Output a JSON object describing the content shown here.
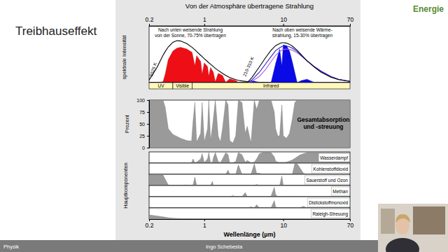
{
  "slide": {
    "title": "Treibhauseffekt",
    "section": "Energie",
    "footer_left": "Physik",
    "footer_center": "Ingo Schebesta"
  },
  "chart_data": [
    {
      "type": "area",
      "title": "Von der Atmosphäre übertragene Strahlung",
      "ylabel": "spektrale Intensität",
      "log": "x",
      "tick_labels": "x",
      "xlim": [
        0.2,
        70
      ],
      "xticks": [
        0.2,
        1,
        10,
        70
      ],
      "ylim": [
        0,
        135
      ],
      "x": [
        0.2,
        0.25,
        0.3,
        0.32,
        0.35,
        0.4,
        0.45,
        0.5,
        0.6,
        0.7,
        0.76,
        0.8,
        0.9,
        0.94,
        1.0,
        1.1,
        1.14,
        1.2,
        1.3,
        1.38,
        1.5,
        1.7,
        1.87,
        2.1,
        2.5,
        2.7,
        3,
        3.5,
        4,
        5,
        6,
        7,
        8,
        9,
        9.6,
        10,
        11,
        12,
        13,
        15,
        17,
        20,
        25,
        30,
        40,
        50,
        70
      ],
      "series": [
        {
          "type": "area",
          "color": "#ee0f16",
          "values": [
            0,
            0,
            2,
            20,
            55,
            75,
            82,
            84,
            80,
            72,
            40,
            64,
            50,
            20,
            47,
            38,
            15,
            36,
            25,
            2,
            22,
            17,
            1,
            9,
            5,
            0.5,
            0.5,
            1.5,
            1,
            0,
            0,
            0,
            0,
            0,
            0,
            0,
            0,
            0,
            0,
            0,
            0,
            0,
            0,
            0,
            0,
            0,
            0
          ]
        },
        {
          "type": "line",
          "color": "#000000",
          "values": [
            6,
            35,
            65,
            74,
            85,
            96,
            100,
            99,
            93,
            84,
            78,
            74,
            65,
            62,
            57,
            50,
            47,
            44,
            38,
            34,
            29,
            22,
            17,
            12,
            7,
            5.5,
            4,
            2.5,
            1.5,
            0.6,
            0.3,
            0,
            0,
            0,
            0,
            0,
            0,
            0,
            0,
            0,
            0,
            0,
            0,
            0,
            0,
            0,
            0
          ]
        },
        {
          "type": "area",
          "color": "#0a0ae6",
          "values": [
            0,
            0,
            0,
            0,
            0,
            0,
            0,
            0,
            0,
            0,
            0,
            0,
            0,
            0,
            0,
            0,
            0,
            0,
            0,
            0,
            0,
            0,
            0,
            0,
            0,
            0,
            0,
            0,
            5,
            0,
            0,
            0,
            45,
            80,
            40,
            90,
            88,
            75,
            50,
            0,
            5,
            8,
            0,
            0,
            0,
            0,
            0
          ]
        },
        {
          "type": "line",
          "color": "#b05ce6",
          "values": [
            0,
            0,
            0,
            0,
            0,
            0,
            0,
            0,
            0,
            0,
            0,
            0,
            0,
            0,
            0,
            0,
            0,
            0,
            0,
            0,
            0,
            0,
            0,
            0,
            0,
            0,
            0,
            0,
            3,
            15,
            32,
            50,
            65,
            74,
            77,
            79,
            80,
            79,
            77,
            71,
            63,
            52,
            38,
            28,
            15,
            8,
            3
          ]
        },
        {
          "type": "line",
          "color": "#2020d0",
          "values": [
            0,
            0,
            0,
            0,
            0,
            0,
            0,
            0,
            0,
            0,
            0,
            0,
            0,
            0,
            0,
            0,
            0,
            0,
            0,
            0,
            0,
            0,
            0,
            0,
            0,
            0,
            0,
            0,
            6,
            25,
            45,
            62,
            76,
            83,
            86,
            87,
            87,
            85,
            82,
            74,
            64,
            52,
            37,
            27,
            14,
            8,
            3
          ]
        },
        {
          "type": "line",
          "color": "#000000",
          "values": [
            0,
            0,
            0,
            0,
            0,
            0,
            0,
            0,
            0,
            0,
            0,
            0,
            0,
            0,
            0,
            0,
            0,
            0,
            0,
            0,
            0,
            0,
            0,
            0,
            0,
            0,
            0,
            0,
            12,
            38,
            60,
            77,
            88,
            93,
            95,
            95,
            94,
            91,
            87,
            77,
            66,
            52,
            36,
            25,
            13,
            7,
            3
          ]
        }
      ],
      "bands": [
        {
          "label": "UV",
          "from": 0.2,
          "to": 0.4
        },
        {
          "label": "Visible",
          "from": 0.4,
          "to": 0.7
        },
        {
          "label": "Infrared",
          "from": 0.7,
          "to": 70
        }
      ],
      "annotations": [
        [
          "Nach unten weisende Strahlung",
          "von der Sonne, 70-75% übertragen"
        ],
        [
          "Nach oben weisende Wärme-",
          "strahlung, 15-30% übertragen"
        ],
        [
          "5525 K"
        ],
        [
          "210-310 K"
        ]
      ]
    },
    {
      "type": "area",
      "ylabel": "Prozent",
      "log": "x",
      "tick_labels": "y",
      "xlim": [
        0.2,
        70
      ],
      "ylim": [
        0,
        100
      ],
      "yticks": [
        0,
        25,
        50,
        75,
        100
      ],
      "x": [
        0.2,
        0.25,
        0.3,
        0.32,
        0.35,
        0.4,
        0.5,
        0.6,
        0.69,
        0.72,
        0.76,
        0.8,
        0.9,
        0.94,
        1.0,
        1.1,
        1.14,
        1.2,
        1.27,
        1.3,
        1.38,
        1.5,
        1.6,
        1.7,
        1.87,
        2.0,
        2.1,
        2.3,
        2.5,
        2.7,
        3.0,
        3.3,
        3.5,
        3.9,
        4.3,
        4.6,
        5.0,
        5.5,
        6.3,
        7.0,
        7.7,
        8.0,
        8.5,
        9.0,
        9.6,
        10,
        11,
        12,
        13,
        14,
        15,
        16,
        18,
        20,
        25,
        30,
        40,
        50,
        70
      ],
      "series": [
        {
          "color": "#9a9a9a",
          "values": [
            100,
            100,
            100,
            85,
            40,
            28,
            20,
            15,
            14,
            55,
            95,
            12,
            30,
            95,
            12,
            40,
            100,
            15,
            45,
            60,
            100,
            25,
            12,
            40,
            100,
            90,
            15,
            10,
            25,
            100,
            95,
            30,
            45,
            10,
            100,
            80,
            100,
            100,
            100,
            100,
            75,
            40,
            25,
            25,
            90,
            25,
            20,
            30,
            60,
            95,
            100,
            100,
            100,
            100,
            100,
            100,
            100,
            100,
            100
          ]
        }
      ],
      "annotations": [
        [
          "Gesamtabsorption",
          "und -streuung"
        ]
      ]
    },
    {
      "type": "strips",
      "ylabel": "Hauptkomponenten",
      "xlabel": "Wellenlänge (µm)",
      "log": "x",
      "tick_labels": "x",
      "xlim": [
        0.2,
        70
      ],
      "xticks": [
        0.2,
        1,
        10,
        70
      ],
      "ylim": [
        0,
        100
      ],
      "x": [
        0.2,
        0.25,
        0.3,
        0.32,
        0.35,
        0.4,
        0.5,
        0.6,
        0.69,
        0.72,
        0.76,
        0.8,
        0.9,
        0.94,
        1.0,
        1.1,
        1.14,
        1.2,
        1.27,
        1.3,
        1.38,
        1.5,
        1.6,
        1.7,
        1.87,
        2.0,
        2.1,
        2.3,
        2.5,
        2.7,
        3.0,
        3.3,
        3.5,
        3.9,
        4.3,
        4.6,
        5.0,
        5.5,
        6.3,
        7.0,
        7.7,
        8.0,
        8.5,
        9.0,
        9.6,
        10,
        11,
        12,
        13,
        14,
        15,
        16,
        18,
        20,
        25,
        30,
        40,
        50,
        70
      ],
      "series": [
        {
          "name": "Wasserdampf",
          "color": "#9a9a9a",
          "values": [
            0,
            0,
            0,
            0,
            0,
            0,
            0,
            0,
            5,
            40,
            5,
            10,
            40,
            90,
            5,
            40,
            100,
            5,
            10,
            50,
            100,
            15,
            5,
            40,
            100,
            80,
            5,
            5,
            15,
            100,
            80,
            10,
            25,
            5,
            10,
            40,
            90,
            100,
            100,
            100,
            60,
            20,
            10,
            8,
            8,
            8,
            10,
            20,
            30,
            45,
            60,
            75,
            90,
            100,
            100,
            100,
            100,
            100,
            100
          ]
        },
        {
          "name": "Kohlenstoffdioxid",
          "color": "#9a9a9a",
          "values": [
            0,
            0,
            0,
            0,
            0,
            0,
            0,
            0,
            0,
            0,
            0,
            0,
            0,
            0,
            0,
            0,
            0,
            0,
            0,
            0,
            0,
            0,
            0,
            0,
            0,
            40,
            0,
            0,
            0,
            90,
            0,
            0,
            0,
            0,
            100,
            10,
            10,
            0,
            0,
            0,
            0,
            0,
            0,
            0,
            0,
            5,
            0,
            0,
            0,
            100,
            100,
            70,
            10,
            0,
            0,
            0,
            0,
            0,
            0
          ]
        },
        {
          "name": "Sauerstoff und Ozon",
          "color": "#9a9a9a",
          "values": [
            100,
            100,
            100,
            60,
            5,
            0,
            3,
            5,
            2,
            5,
            80,
            0,
            0,
            0,
            0,
            0,
            0,
            0,
            40,
            0,
            0,
            0,
            0,
            0,
            0,
            0,
            0,
            0,
            0,
            0,
            0,
            0,
            0,
            0,
            0,
            10,
            0,
            0,
            0,
            0,
            0,
            0,
            0,
            0,
            90,
            0,
            0,
            0,
            0,
            0,
            0,
            0,
            0,
            0,
            0,
            0,
            0,
            0,
            0
          ]
        },
        {
          "name": "Methan",
          "color": "#9a9a9a",
          "values": [
            0,
            0,
            0,
            0,
            0,
            0,
            0,
            0,
            0,
            0,
            0,
            0,
            0,
            0,
            0,
            0,
            0,
            0,
            0,
            0,
            0,
            0,
            0,
            0,
            0,
            0,
            0,
            10,
            0,
            0,
            0,
            40,
            0,
            0,
            0,
            0,
            0,
            0,
            0,
            5,
            90,
            20,
            0,
            0,
            0,
            0,
            0,
            0,
            0,
            0,
            0,
            0,
            0,
            0,
            0,
            0,
            0,
            0,
            0
          ]
        },
        {
          "name": "Distickstoffmonoxid",
          "color": "#9a9a9a",
          "values": [
            0,
            0,
            0,
            0,
            0,
            0,
            0,
            0,
            0,
            0,
            0,
            0,
            0,
            0,
            0,
            0,
            0,
            0,
            0,
            0,
            0,
            0,
            0,
            0,
            0,
            0,
            0,
            0,
            0,
            0,
            0,
            0,
            0,
            10,
            0,
            30,
            0,
            0,
            0,
            0,
            70,
            10,
            0,
            0,
            0,
            0,
            0,
            0,
            0,
            0,
            0,
            0,
            15,
            0,
            0,
            0,
            0,
            0,
            0
          ]
        },
        {
          "name": "Raleigh-Streuung",
          "color": "#9a9a9a",
          "values": [
            40,
            30,
            22,
            18,
            13,
            9,
            5,
            3,
            2,
            1.5,
            1.2,
            1,
            0.6,
            0.5,
            0.4,
            0.3,
            0.2,
            0,
            0,
            0,
            0,
            0,
            0,
            0,
            0,
            0,
            0,
            0,
            0,
            0,
            0,
            0,
            0,
            0,
            0,
            0,
            0,
            0,
            0,
            0,
            0,
            0,
            0,
            0,
            0,
            0,
            0,
            0,
            0,
            0,
            0,
            0,
            0,
            0,
            0,
            0,
            0,
            0,
            0
          ]
        }
      ]
    }
  ]
}
